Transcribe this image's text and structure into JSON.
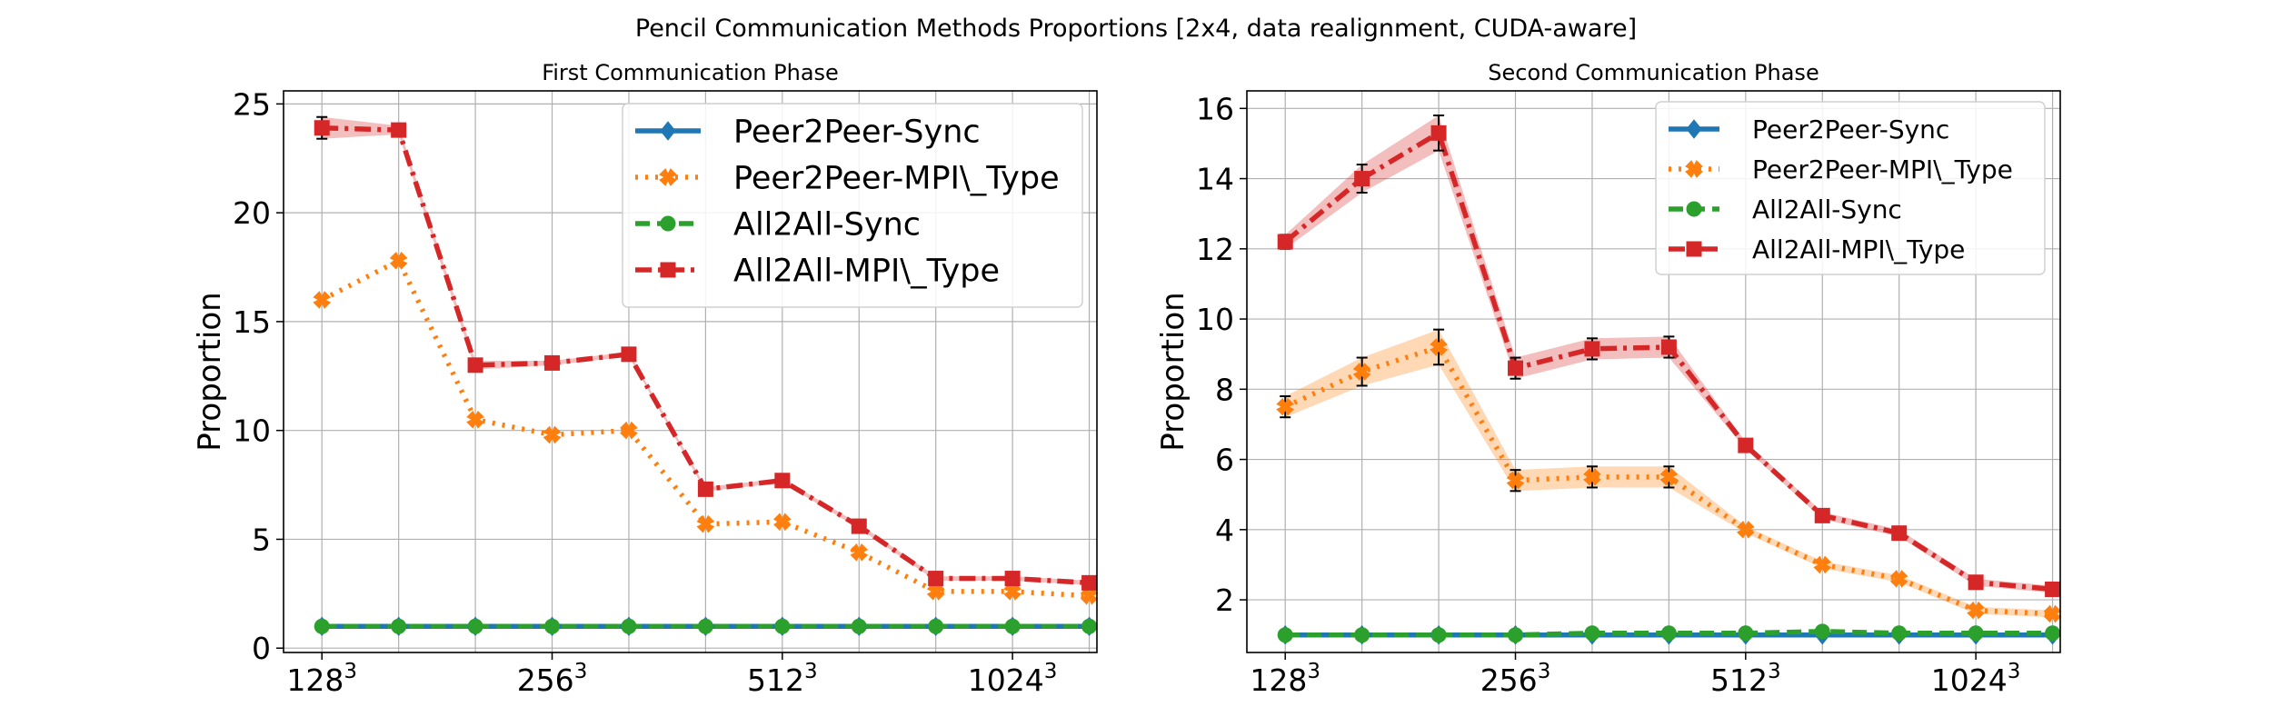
{
  "figure": {
    "suptitle": "Pencil Communication Methods Proportions [2x4, data realignment, CUDA-aware]"
  },
  "chart_data": [
    {
      "type": "line",
      "title": "First Communication Phase",
      "xlabel": "",
      "ylabel": "Proportion",
      "ylim": [
        -0.2,
        25.6
      ],
      "yticks": [
        0,
        5,
        10,
        15,
        20,
        25
      ],
      "xlim": [
        -0.5,
        10.1
      ],
      "x": [
        0,
        1,
        2,
        3,
        4,
        5,
        6,
        7,
        8,
        9,
        10
      ],
      "xticks": [
        {
          "x": 0,
          "base": "128",
          "exp": "3"
        },
        {
          "x": 3,
          "base": "256",
          "exp": "3"
        },
        {
          "x": 6,
          "base": "512",
          "exp": "3"
        },
        {
          "x": 9,
          "base": "1024",
          "exp": "3"
        }
      ],
      "grid": true,
      "legend_position": "upper-right",
      "series": [
        {
          "name": "Peer2Peer-Sync",
          "color": "#1f77b4",
          "marker": "diamond",
          "dash": "solid",
          "values": [
            1.0,
            1.0,
            1.0,
            1.0,
            1.0,
            1.0,
            1.0,
            1.0,
            1.0,
            1.0,
            1.0
          ]
        },
        {
          "name": "Peer2Peer-MPI\\_Type",
          "color": "#ff7f0e",
          "marker": "x",
          "dash": "dotted",
          "values": [
            16.0,
            17.8,
            10.5,
            9.8,
            10.0,
            5.7,
            5.8,
            4.4,
            2.6,
            2.6,
            2.4
          ]
        },
        {
          "name": "All2All-Sync",
          "color": "#2ca02c",
          "marker": "circle",
          "dash": "dashed",
          "values": [
            1.0,
            1.0,
            1.0,
            1.0,
            1.0,
            1.0,
            1.0,
            1.0,
            1.0,
            1.0,
            1.0
          ]
        },
        {
          "name": "All2All-MPI\\_Type",
          "color": "#d62728",
          "marker": "square",
          "dash": "dashdot",
          "values": [
            23.9,
            23.8,
            13.0,
            13.1,
            13.5,
            7.3,
            7.7,
            5.6,
            3.2,
            3.2,
            3.0
          ],
          "error": [
            0.5,
            0.2,
            0.2,
            0.1,
            0.1,
            0.1,
            0.1,
            0.1,
            0.1,
            0.1,
            0.1
          ]
        }
      ]
    },
    {
      "type": "line",
      "title": "Second Communication Phase",
      "xlabel": "",
      "ylabel": "Proportion",
      "ylim": [
        0.5,
        16.5
      ],
      "yticks": [
        2,
        4,
        6,
        8,
        10,
        12,
        14,
        16
      ],
      "xlim": [
        -0.5,
        10.1
      ],
      "x": [
        0,
        1,
        2,
        3,
        4,
        5,
        6,
        7,
        8,
        9,
        10
      ],
      "xticks": [
        {
          "x": 0,
          "base": "128",
          "exp": "3"
        },
        {
          "x": 3,
          "base": "256",
          "exp": "3"
        },
        {
          "x": 6,
          "base": "512",
          "exp": "3"
        },
        {
          "x": 9,
          "base": "1024",
          "exp": "3"
        }
      ],
      "grid": true,
      "legend_position": "upper-right",
      "series": [
        {
          "name": "Peer2Peer-Sync",
          "color": "#1f77b4",
          "marker": "diamond",
          "dash": "solid",
          "values": [
            1.0,
            1.0,
            1.0,
            1.0,
            1.0,
            1.0,
            1.0,
            1.0,
            1.0,
            1.0,
            1.0
          ]
        },
        {
          "name": "Peer2Peer-MPI\\_Type",
          "color": "#ff7f0e",
          "marker": "x",
          "dash": "dotted",
          "values": [
            7.5,
            8.5,
            9.2,
            5.4,
            5.5,
            5.5,
            4.0,
            3.0,
            2.6,
            1.7,
            1.6
          ],
          "error": [
            0.3,
            0.4,
            0.5,
            0.3,
            0.3,
            0.3,
            0.1,
            0.1,
            0.1,
            0.1,
            0.1
          ]
        },
        {
          "name": "All2All-Sync",
          "color": "#2ca02c",
          "marker": "circle",
          "dash": "dashed",
          "values": [
            1.0,
            1.0,
            1.0,
            1.0,
            1.05,
            1.05,
            1.05,
            1.1,
            1.05,
            1.05,
            1.05
          ]
        },
        {
          "name": "All2All-MPI\\_Type",
          "color": "#d62728",
          "marker": "square",
          "dash": "dashdot",
          "values": [
            12.2,
            14.0,
            15.3,
            8.6,
            9.15,
            9.2,
            6.4,
            4.4,
            3.9,
            2.5,
            2.3
          ],
          "error": [
            0.2,
            0.4,
            0.5,
            0.3,
            0.3,
            0.3,
            0.1,
            0.1,
            0.1,
            0.1,
            0.1
          ]
        }
      ]
    }
  ]
}
